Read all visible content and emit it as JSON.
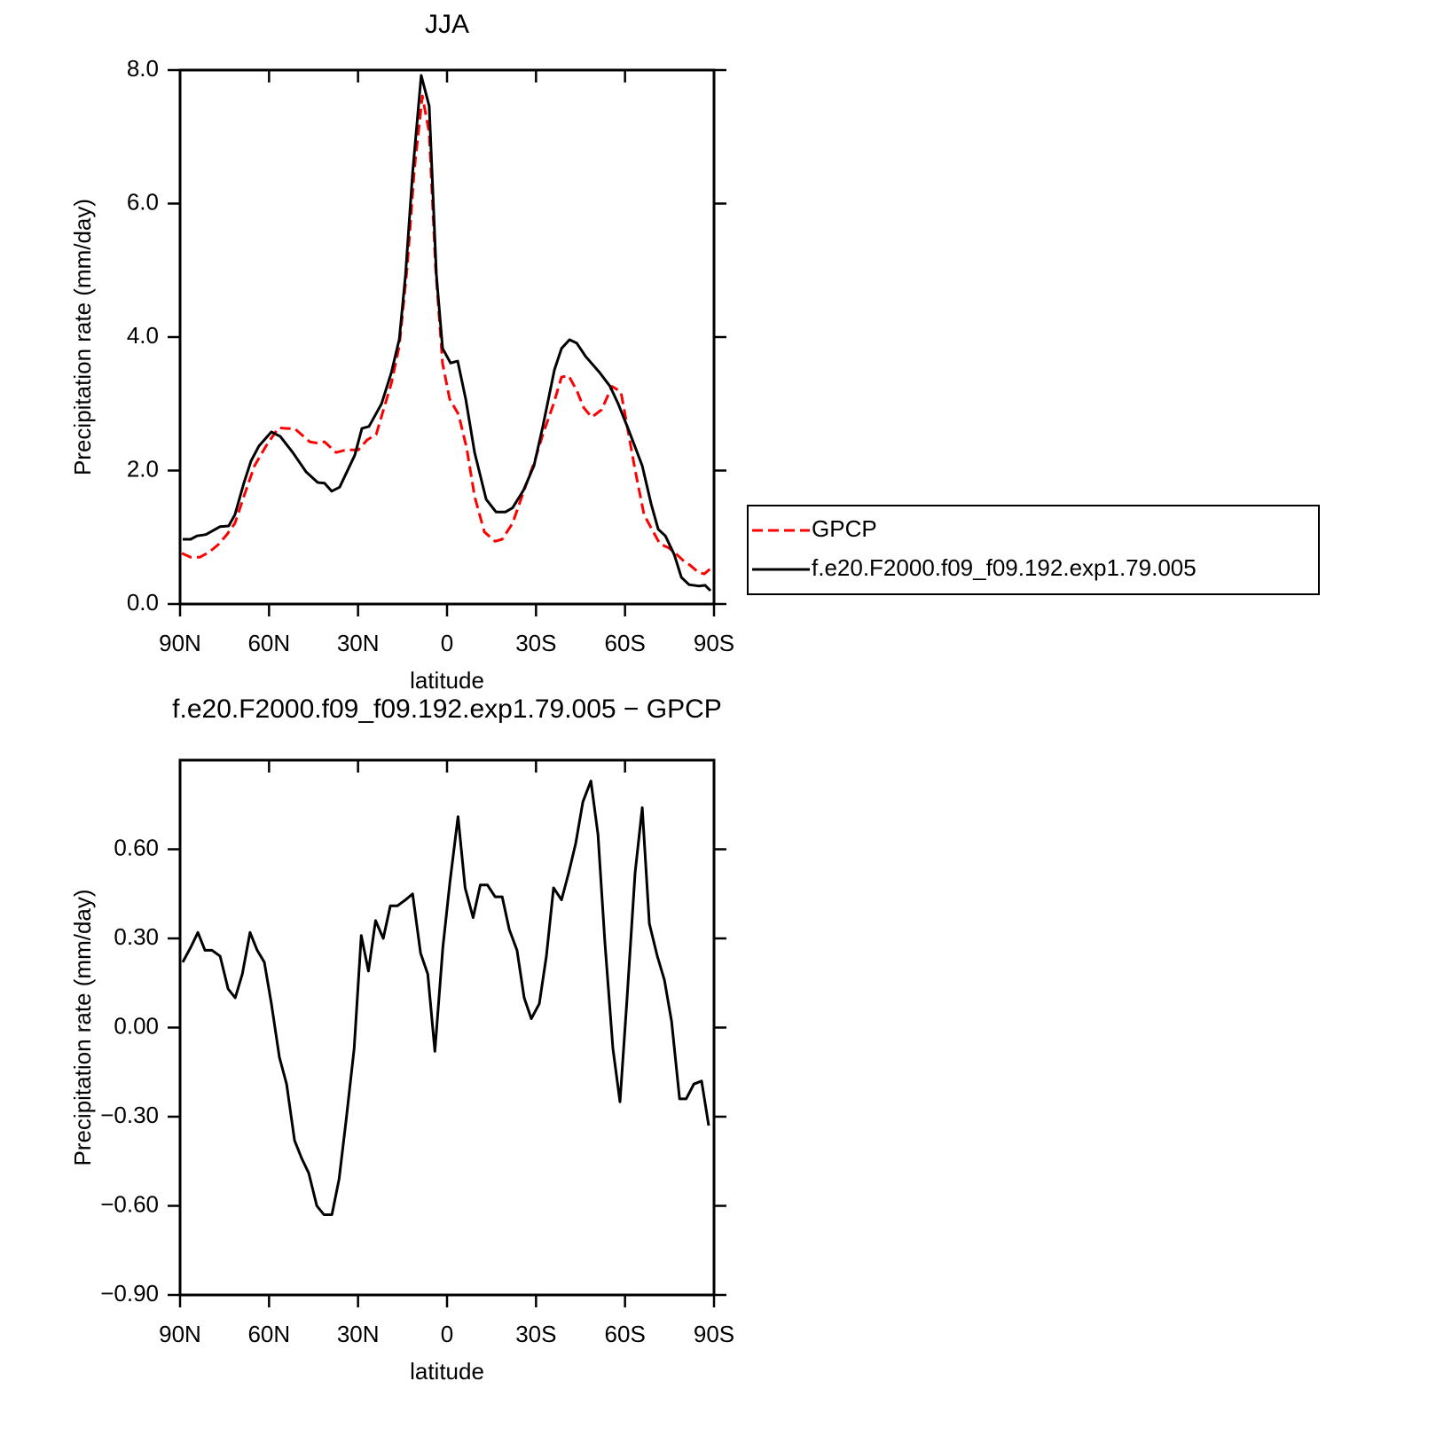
{
  "chart_data": [
    {
      "type": "line",
      "title": "JJA",
      "xlabel": "latitude",
      "ylabel": "Precipitation rate (mm/day)",
      "xlim": [
        90,
        -90
      ],
      "ylim": [
        0,
        8
      ],
      "xticks": [
        {
          "value": 90,
          "label": "90N"
        },
        {
          "value": 60,
          "label": "60N"
        },
        {
          "value": 30,
          "label": "30N"
        },
        0,
        {
          "value": -30,
          "label": "30S"
        },
        {
          "value": -60,
          "label": "60S"
        },
        {
          "value": -90,
          "label": "90S"
        }
      ],
      "yticks": [
        {
          "value": 0,
          "label": "0.0"
        },
        {
          "value": 2,
          "label": "2.0"
        },
        {
          "value": 4,
          "label": "4.0"
        },
        {
          "value": 6,
          "label": "6.0"
        },
        {
          "value": 8,
          "label": "8.0"
        }
      ],
      "legend": "right",
      "series": [
        {
          "name": "GPCP",
          "color": "#ff0000",
          "dashed": true,
          "x": [
            89.4,
            86.4,
            83.4,
            80.1,
            77.1,
            74.2,
            71.5,
            68.5,
            64.9,
            61.0,
            56.8,
            53.8,
            51.4,
            46.3,
            43.6,
            41.3,
            37.4,
            34.1,
            29.9,
            26.9,
            23.9,
            21.5,
            18.8,
            16.1,
            13.4,
            11.0,
            8.3,
            6.0,
            3.9,
            1.5,
            -0.9,
            -3.9,
            -6.6,
            -9.3,
            -12.6,
            -16.2,
            -18.6,
            -22.1,
            -25.7,
            -29.3,
            -32.3,
            -35.9,
            -38.6,
            -41.0,
            -43.7,
            -46.1,
            -48.8,
            -52.1,
            -55.6,
            -58.6,
            -61.0,
            -63.4,
            -66.4,
            -68.8,
            -71.8,
            -74.8,
            -77.5,
            -79.9,
            -82.0,
            -84.6,
            -86.7,
            -89.0
          ],
          "values": [
            0.76,
            0.7,
            0.7,
            0.78,
            0.89,
            1.04,
            1.21,
            1.61,
            2.07,
            2.37,
            2.64,
            2.63,
            2.63,
            2.43,
            2.41,
            2.43,
            2.27,
            2.31,
            2.31,
            2.46,
            2.54,
            2.9,
            3.3,
            3.87,
            5.06,
            6.52,
            7.61,
            7.06,
            5.06,
            3.6,
            3.07,
            2.84,
            2.34,
            1.61,
            1.08,
            0.94,
            0.97,
            1.21,
            1.67,
            2.11,
            2.54,
            3.0,
            3.4,
            3.42,
            3.2,
            2.94,
            2.8,
            2.91,
            3.26,
            3.18,
            2.6,
            2.01,
            1.34,
            1.14,
            0.9,
            0.84,
            0.74,
            0.64,
            0.58,
            0.48,
            0.45,
            0.54
          ]
        },
        {
          "name": "f.e20.F2000.f09_f09.192.exp1.79.005",
          "color": "#000000",
          "dashed": false,
          "x": [
            89.1,
            86.4,
            84.3,
            81.3,
            76.5,
            73.6,
            71.5,
            68.5,
            66.1,
            63.4,
            59.2,
            56.2,
            52.0,
            47.5,
            43.6,
            41.3,
            38.9,
            36.2,
            31.1,
            28.7,
            26.3,
            22.1,
            18.8,
            16.1,
            14.0,
            11.6,
            8.7,
            6.0,
            3.6,
            1.5,
            -1.2,
            -3.6,
            -6.3,
            -9.3,
            -13.2,
            -16.5,
            -19.7,
            -22.1,
            -25.7,
            -29.3,
            -32.3,
            -36.2,
            -38.6,
            -41.3,
            -43.7,
            -46.7,
            -51.4,
            -55.0,
            -57.7,
            -61.3,
            -65.8,
            -68.8,
            -71.2,
            -73.6,
            -76.6,
            -79.0,
            -81.6,
            -84.9,
            -87.0,
            -88.8
          ],
          "values": [
            0.97,
            0.97,
            1.02,
            1.04,
            1.16,
            1.17,
            1.34,
            1.81,
            2.14,
            2.37,
            2.58,
            2.51,
            2.27,
            1.98,
            1.82,
            1.81,
            1.69,
            1.75,
            2.23,
            2.63,
            2.66,
            3.0,
            3.46,
            3.97,
            4.93,
            6.46,
            7.92,
            7.46,
            4.93,
            3.83,
            3.61,
            3.64,
            3.07,
            2.27,
            1.57,
            1.38,
            1.38,
            1.44,
            1.7,
            2.07,
            2.66,
            3.51,
            3.83,
            3.96,
            3.91,
            3.71,
            3.47,
            3.26,
            3.0,
            2.6,
            2.07,
            1.5,
            1.12,
            1.02,
            0.74,
            0.4,
            0.29,
            0.27,
            0.28,
            0.2
          ]
        }
      ]
    },
    {
      "type": "line",
      "title": "f.e20.F2000.f09_f09.192.exp1.79.005 − GPCP",
      "xlabel": "latitude",
      "ylabel": "Precipitation rate (mm/day)",
      "xlim": [
        90,
        -90
      ],
      "ylim": [
        -0.9,
        0.9
      ],
      "xticks": [
        {
          "value": 90,
          "label": "90N"
        },
        {
          "value": 60,
          "label": "60N"
        },
        {
          "value": 30,
          "label": "30N"
        },
        0,
        {
          "value": -30,
          "label": "30S"
        },
        {
          "value": -60,
          "label": "60S"
        },
        {
          "value": -90,
          "label": "90S"
        }
      ],
      "yticks": [
        {
          "value": -0.9,
          "label": "−0.90"
        },
        {
          "value": -0.6,
          "label": "−0.60"
        },
        {
          "value": -0.3,
          "label": "−0.30"
        },
        {
          "value": 0,
          "label": "0.00"
        },
        {
          "value": 0.3,
          "label": "0.30"
        },
        {
          "value": 0.6,
          "label": "0.60"
        }
      ],
      "color": "#000000",
      "x": [
        89.1,
        86.4,
        84.0,
        81.6,
        79.2,
        76.5,
        73.8,
        71.4,
        69.0,
        66.4,
        64.0,
        61.6,
        59.2,
        56.5,
        54.1,
        51.4,
        49.0,
        46.6,
        43.9,
        41.5,
        38.8,
        36.4,
        34.0,
        31.3,
        28.9,
        26.5,
        24.1,
        21.5,
        19.1,
        16.7,
        14.0,
        11.6,
        8.9,
        6.5,
        4.1,
        1.4,
        -1.0,
        -3.7,
        -6.1,
        -8.8,
        -11.2,
        -13.6,
        -16.2,
        -18.6,
        -21.0,
        -23.6,
        -26.0,
        -28.4,
        -31.1,
        -33.5,
        -35.9,
        -38.6,
        -41.0,
        -43.4,
        -45.8,
        -48.5,
        -50.9,
        -53.2,
        -55.9,
        -58.3,
        -60.7,
        -63.4,
        -65.8,
        -68.2,
        -70.9,
        -73.3,
        -75.7,
        -78.4,
        -80.6,
        -83.2,
        -85.8,
        -88.2
      ],
      "values": [
        0.22,
        0.27,
        0.32,
        0.26,
        0.26,
        0.24,
        0.13,
        0.1,
        0.18,
        0.32,
        0.26,
        0.22,
        0.08,
        -0.1,
        -0.19,
        -0.38,
        -0.44,
        -0.49,
        -0.6,
        -0.63,
        -0.63,
        -0.51,
        -0.31,
        -0.07,
        0.31,
        0.19,
        0.36,
        0.3,
        0.41,
        0.41,
        0.43,
        0.45,
        0.25,
        0.18,
        -0.08,
        0.27,
        0.49,
        0.71,
        0.47,
        0.37,
        0.48,
        0.48,
        0.44,
        0.44,
        0.33,
        0.26,
        0.1,
        0.03,
        0.08,
        0.24,
        0.47,
        0.43,
        0.52,
        0.62,
        0.76,
        0.83,
        0.65,
        0.29,
        -0.07,
        -0.25,
        0.1,
        0.52,
        0.74,
        0.35,
        0.24,
        0.16,
        0.02,
        -0.24,
        -0.24,
        -0.19,
        -0.18,
        -0.33
      ]
    }
  ]
}
